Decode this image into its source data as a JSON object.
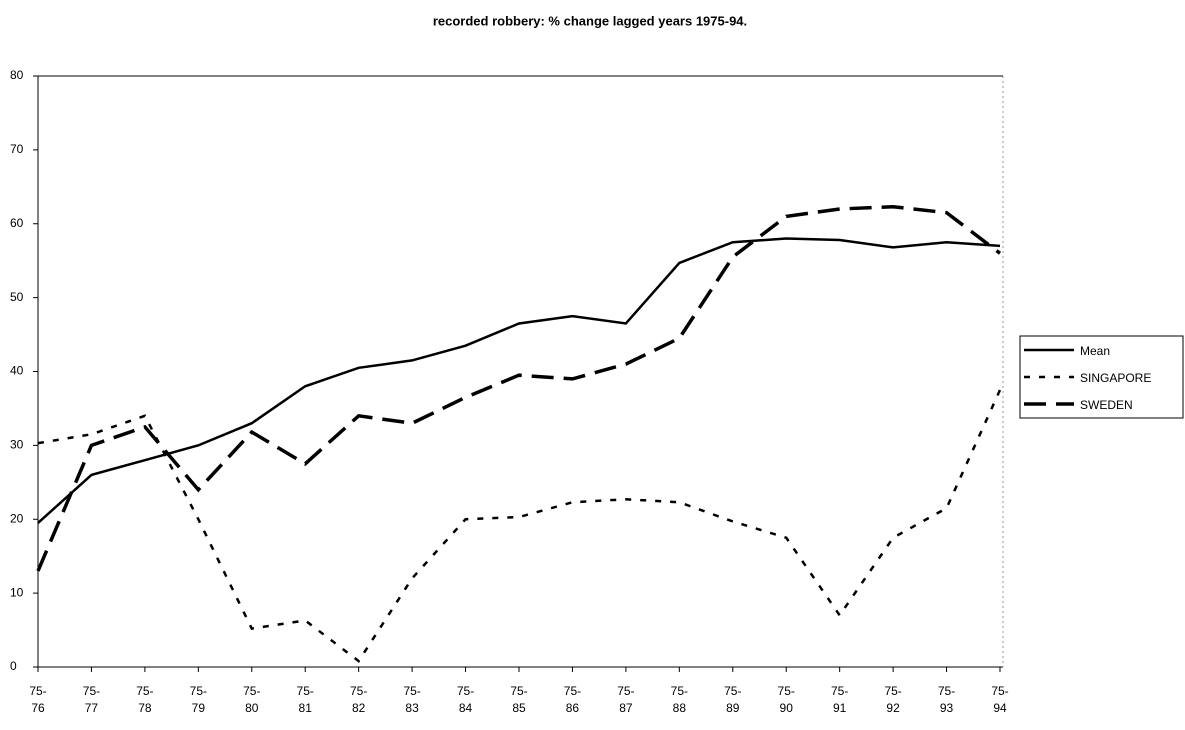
{
  "chart_data": {
    "type": "line",
    "title": "recorded robbery: % change lagged years 1975-94.",
    "categories": [
      "75-76",
      "75-77",
      "75-78",
      "75-79",
      "75-80",
      "75-81",
      "75-82",
      "75-83",
      "75-84",
      "75-85",
      "75-86",
      "75-87",
      "75-88",
      "75-89",
      "75-90",
      "75-91",
      "75-92",
      "75-93",
      "75-94"
    ],
    "series": [
      {
        "name": "Mean",
        "color": "#000000",
        "dash": "solid",
        "values": [
          19.5,
          26,
          28,
          30,
          33,
          38,
          40.5,
          41.5,
          43.5,
          46.5,
          47.5,
          46.5,
          54.7,
          57.5,
          58,
          57.8,
          56.8,
          57.5,
          57
        ]
      },
      {
        "name": "SINGAPORE",
        "color": "#000000",
        "dash": "short",
        "values": [
          30.3,
          31.5,
          34,
          20,
          5.2,
          6.3,
          0.8,
          12,
          20,
          20.3,
          22.3,
          22.7,
          22.3,
          19.7,
          17.5,
          7,
          17.5,
          21.5,
          37.5
        ]
      },
      {
        "name": "SWEDEN",
        "color": "#000000",
        "dash": "long",
        "values": [
          13,
          30,
          32.5,
          24,
          31.8,
          27.5,
          34,
          33,
          36.5,
          39.5,
          39,
          41,
          44.5,
          55.5,
          61,
          62,
          62.3,
          61.5,
          56
        ]
      }
    ],
    "ylim": [
      0,
      80
    ],
    "yticks": [
      0,
      10,
      20,
      30,
      40,
      50,
      60,
      70,
      80
    ],
    "grid": false,
    "legend": "right"
  }
}
